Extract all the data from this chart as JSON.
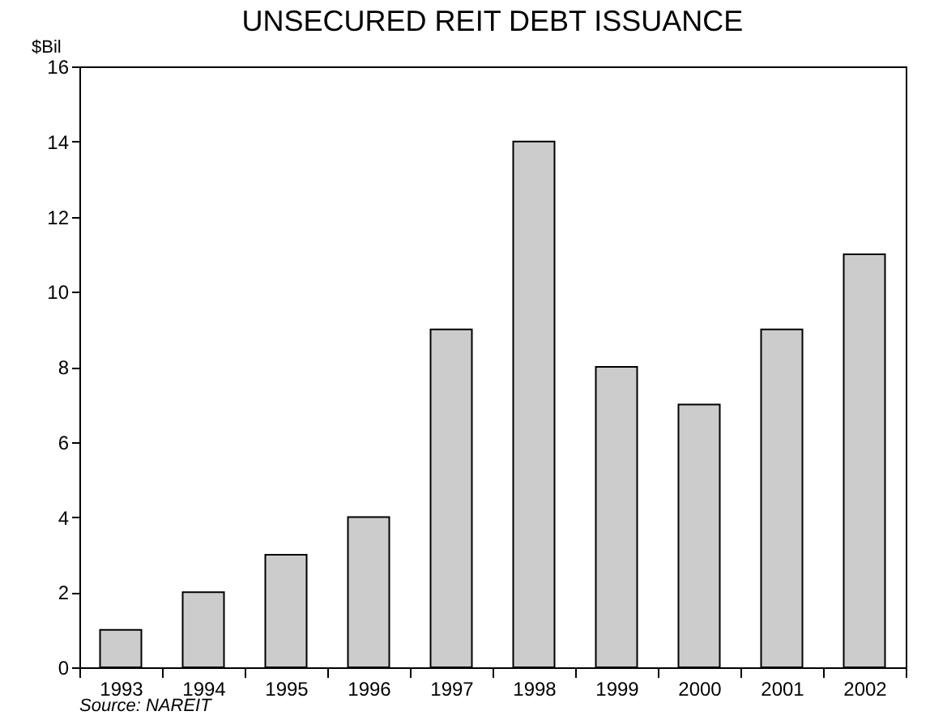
{
  "chart_data": {
    "type": "bar",
    "title": "UNSECURED REIT DEBT ISSUANCE",
    "ylabel": "$Bil",
    "categories": [
      "1993",
      "1994",
      "1995",
      "1996",
      "1997",
      "1998",
      "1999",
      "2000",
      "2001",
      "2002"
    ],
    "values": [
      1,
      2,
      3,
      4,
      9,
      14,
      8,
      7,
      9,
      11
    ],
    "color": "#cccccc",
    "ylim": [
      0,
      16
    ],
    "yticks": [
      0,
      2,
      4,
      6,
      8,
      10,
      12,
      14,
      16
    ],
    "grid": false,
    "annotations": [
      "Source: NAREIT"
    ]
  }
}
